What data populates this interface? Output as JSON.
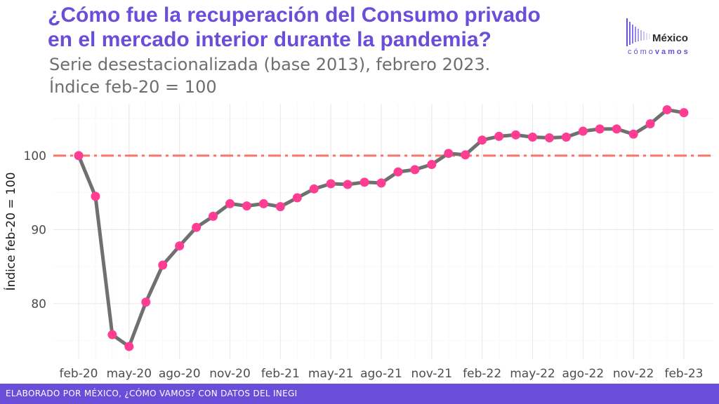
{
  "header": {
    "title_line1": "¿Cómo fue la recuperación del Consumo privado",
    "title_line2": "en el mercado interior durante la pandemia?",
    "subtitle_line1": "Serie desestacionalizada (base 2013), febrero 2023.",
    "subtitle_line2": "Índice feb-20 = 100"
  },
  "logo": {
    "name": "México",
    "tagline_light": "cómo",
    "tagline_bold": "vamos"
  },
  "footer": {
    "text": "ELABORADO POR MÉXICO, ¿CÓMO VAMOS? CON DATOS DEL INEGI"
  },
  "colors": {
    "accent": "#6a4ed9",
    "line": "#707070",
    "points": "#ff3e93",
    "reference": "#f8766d",
    "grid": "#ebebeb"
  },
  "chart_data": {
    "type": "line",
    "ylabel": "Índice feb-20 = 100",
    "xlabel": "",
    "ylim": [
      72.5,
      107
    ],
    "yticks": [
      80,
      90,
      100
    ],
    "reference_line": 100,
    "reference_style": "dash-dot",
    "grid": true,
    "x": [
      "feb-20",
      "mar-20",
      "abr-20",
      "may-20",
      "jun-20",
      "jul-20",
      "ago-20",
      "sep-20",
      "oct-20",
      "nov-20",
      "dic-20",
      "ene-21",
      "feb-21",
      "mar-21",
      "abr-21",
      "may-21",
      "jun-21",
      "jul-21",
      "ago-21",
      "sep-21",
      "oct-21",
      "nov-21",
      "dic-21",
      "ene-22",
      "feb-22",
      "mar-22",
      "abr-22",
      "may-22",
      "jun-22",
      "jul-22",
      "ago-22",
      "sep-22",
      "oct-22",
      "nov-22",
      "dic-22",
      "ene-23",
      "feb-23"
    ],
    "xtick_labels": [
      "feb-20",
      "may-20",
      "ago-20",
      "nov-20",
      "feb-21",
      "may-21",
      "ago-21",
      "nov-21",
      "feb-22",
      "may-22",
      "ago-22",
      "nov-22",
      "feb-23"
    ],
    "series": [
      {
        "values": [
          100.0,
          94.5,
          75.8,
          74.2,
          80.2,
          85.2,
          87.8,
          90.3,
          91.8,
          93.5,
          93.2,
          93.5,
          93.1,
          94.3,
          95.5,
          96.2,
          96.1,
          96.4,
          96.3,
          97.8,
          98.1,
          98.8,
          100.3,
          100.1,
          102.1,
          102.6,
          102.8,
          102.5,
          102.4,
          102.5,
          103.3,
          103.6,
          103.6,
          102.9,
          104.3,
          106.2,
          105.8
        ]
      }
    ]
  }
}
